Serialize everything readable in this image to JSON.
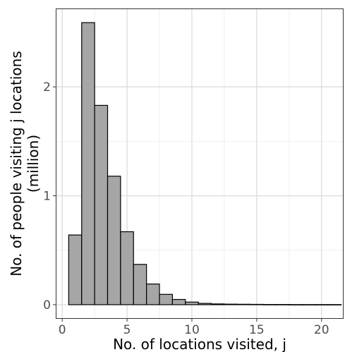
{
  "chart_data": {
    "type": "bar",
    "title": "",
    "xlabel": "No. of locations visited, j",
    "ylabel_line1": "No. of people visiting j locations",
    "ylabel_line2": "(million)",
    "xlim": [
      -0.5,
      21.7
    ],
    "ylim": [
      -0.13,
      2.72
    ],
    "x_ticks": [
      0,
      5,
      10,
      15,
      20
    ],
    "y_ticks": [
      0,
      1,
      2
    ],
    "grid": true,
    "bar_color": "#a6a6a6",
    "bar_edge_color": "#000000",
    "bin_width": 1,
    "x": [
      1,
      2,
      3,
      4,
      5,
      6,
      7,
      8,
      9,
      10,
      11,
      12,
      13,
      14,
      15,
      16,
      17,
      18,
      19,
      20,
      21
    ],
    "values": [
      0.64,
      2.59,
      1.83,
      1.18,
      0.67,
      0.37,
      0.19,
      0.095,
      0.048,
      0.024,
      0.012,
      0.007,
      0.005,
      0.004,
      0.003,
      0.002,
      0.002,
      0.001,
      0.001,
      0.001,
      0.001
    ]
  }
}
